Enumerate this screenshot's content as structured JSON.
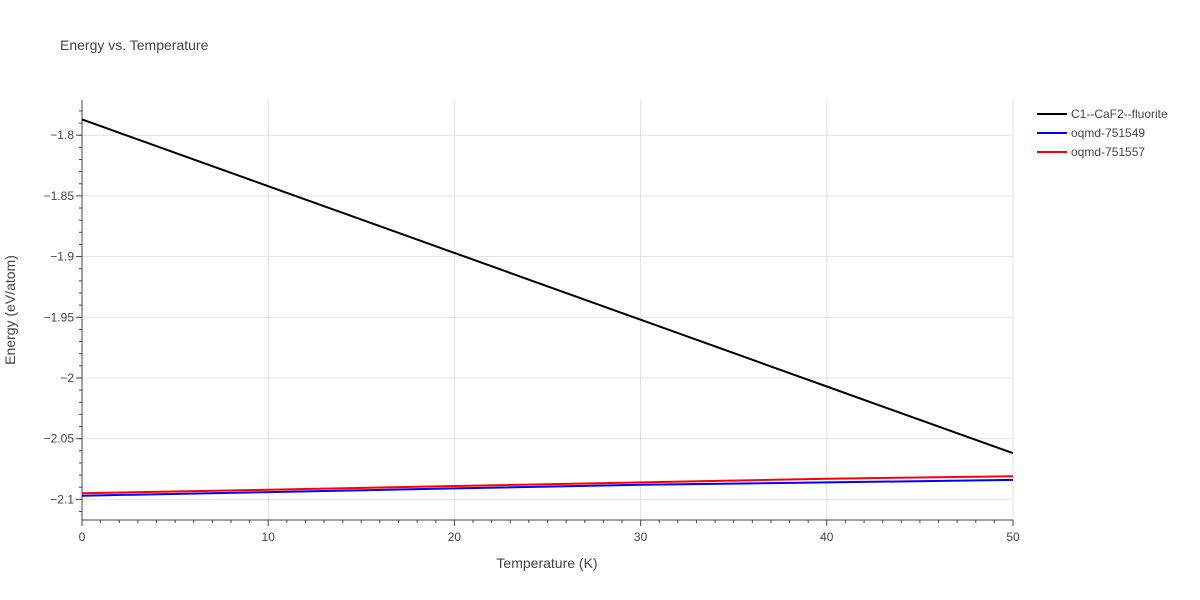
{
  "chart_data": {
    "type": "line",
    "title": "Energy vs. Temperature",
    "xlabel": "Temperature (K)",
    "ylabel": "Energy (eV/atom)",
    "xlim": [
      0,
      50
    ],
    "ylim": [
      -2.117,
      -1.771
    ],
    "x_ticks": [
      0,
      10,
      20,
      30,
      40,
      50
    ],
    "x_tick_labels": [
      "0",
      "10",
      "20",
      "30",
      "40",
      "50"
    ],
    "y_ticks": [
      -1.8,
      -1.85,
      -1.9,
      -1.95,
      -2,
      -2.05,
      -2.1
    ],
    "y_tick_labels": [
      "−1.8",
      "−1.85",
      "−1.9",
      "−1.95",
      "−2",
      "−2.05",
      "−2.1"
    ],
    "grid": true,
    "legend_position": "top-right outside",
    "series": [
      {
        "name": "C1--CaF2--fluorite",
        "color": "#000000",
        "x": [
          0,
          10,
          20,
          30,
          40,
          50
        ],
        "values": [
          -1.787,
          -1.842,
          -1.897,
          -1.952,
          -2.007,
          -2.062
        ]
      },
      {
        "name": "oqmd-751549",
        "color": "#0000ff",
        "x": [
          0,
          10,
          20,
          30,
          40,
          50
        ],
        "values": [
          -2.097,
          -2.094,
          -2.091,
          -2.088,
          -2.086,
          -2.084
        ]
      },
      {
        "name": "oqmd-751557",
        "color": "#ff0000",
        "x": [
          0,
          10,
          20,
          30,
          40,
          50
        ],
        "values": [
          -2.095,
          -2.092,
          -2.089,
          -2.086,
          -2.083,
          -2.081
        ]
      }
    ]
  }
}
